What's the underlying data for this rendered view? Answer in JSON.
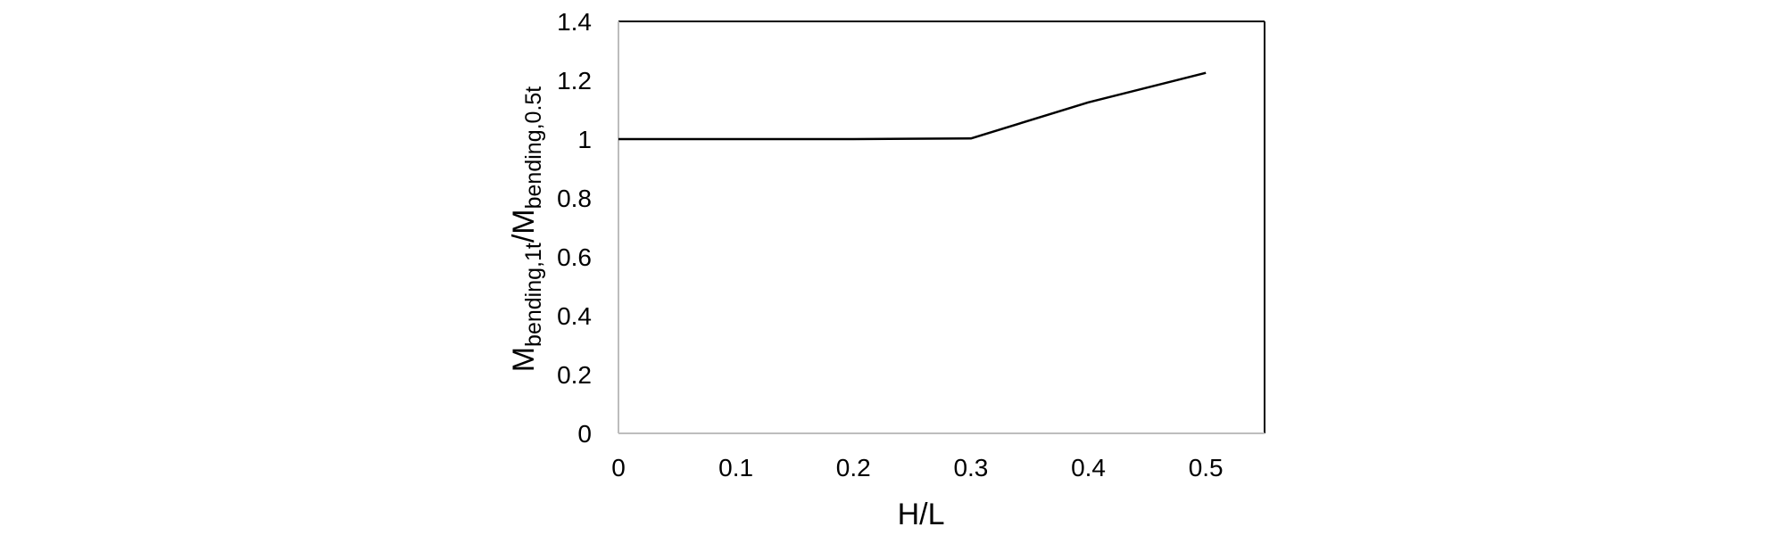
{
  "chart_data": {
    "type": "line",
    "title": "",
    "xlabel": "H/L",
    "ylabel": {
      "prefix": "M",
      "sub1": "bending,1t",
      "mid": "/M",
      "sub2": "bending,0.5t"
    },
    "xlim": [
      0,
      0.55
    ],
    "ylim": [
      0,
      1.4
    ],
    "xticks": [
      "0",
      "0.1",
      "0.2",
      "0.3",
      "0.4",
      "0.5"
    ],
    "yticks": [
      "0",
      "0.2",
      "0.4",
      "0.6",
      "0.8",
      "1",
      "1.2",
      "1.4"
    ],
    "grid": false,
    "legend": "none",
    "series": [
      {
        "x": [
          0,
          0.1,
          0.2,
          0.3,
          0.4,
          0.5
        ],
        "y": [
          1.0,
          1.0,
          1.0,
          1.002,
          1.125,
          1.225
        ],
        "color": "#000000"
      }
    ]
  }
}
